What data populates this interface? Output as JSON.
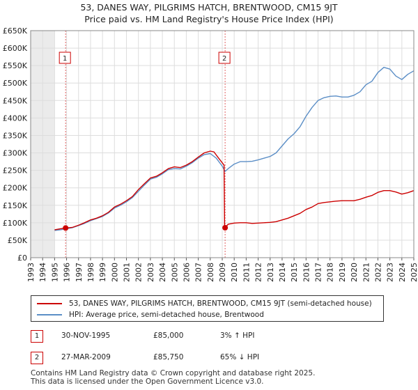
{
  "chart_data": {
    "type": "line",
    "title": "53, DANES WAY, PILGRIMS HATCH, BRENTWOOD, CM15 9JT",
    "subtitle": "Price paid vs. HM Land Registry's House Price Index (HPI)",
    "xlim": [
      1993,
      2025
    ],
    "ylim": [
      0,
      650000
    ],
    "x_ticks": [
      "1993",
      "1994",
      "1995",
      "1996",
      "1997",
      "1998",
      "1999",
      "2000",
      "2001",
      "2002",
      "2003",
      "2004",
      "2005",
      "2006",
      "2007",
      "2008",
      "2009",
      "2010",
      "2011",
      "2012",
      "2013",
      "2014",
      "2015",
      "2016",
      "2017",
      "2018",
      "2019",
      "2020",
      "2021",
      "2022",
      "2023",
      "2024",
      "2025"
    ],
    "y_ticks": [
      {
        "value": 0,
        "label": "£0"
      },
      {
        "value": 50000,
        "label": "£50K"
      },
      {
        "value": 100000,
        "label": "£100K"
      },
      {
        "value": 150000,
        "label": "£150K"
      },
      {
        "value": 200000,
        "label": "£200K"
      },
      {
        "value": 250000,
        "label": "£250K"
      },
      {
        "value": 300000,
        "label": "£300K"
      },
      {
        "value": 350000,
        "label": "£350K"
      },
      {
        "value": 400000,
        "label": "£400K"
      },
      {
        "value": 450000,
        "label": "£450K"
      },
      {
        "value": 500000,
        "label": "£500K"
      },
      {
        "value": 550000,
        "label": "£550K"
      },
      {
        "value": 600000,
        "label": "£600K"
      },
      {
        "value": 650000,
        "label": "£650K"
      }
    ],
    "data_start": 1995,
    "series": [
      {
        "name": "53, DANES WAY, PILGRIMS HATCH, BRENTWOOD, CM15 9JT (semi-detached house)",
        "color": "#cc0000",
        "points": [
          [
            1995.0,
            80000
          ],
          [
            1995.5,
            83000
          ],
          [
            1995.92,
            85000
          ],
          [
            1996.5,
            87000
          ],
          [
            1997,
            93000
          ],
          [
            1997.5,
            100000
          ],
          [
            1998,
            108000
          ],
          [
            1998.5,
            113000
          ],
          [
            1999,
            120000
          ],
          [
            1999.5,
            130000
          ],
          [
            2000,
            145000
          ],
          [
            2000.5,
            153000
          ],
          [
            2001,
            163000
          ],
          [
            2001.5,
            175000
          ],
          [
            2002,
            195000
          ],
          [
            2002.5,
            212000
          ],
          [
            2003,
            228000
          ],
          [
            2003.5,
            233000
          ],
          [
            2004,
            243000
          ],
          [
            2004.5,
            255000
          ],
          [
            2005,
            260000
          ],
          [
            2005.5,
            258000
          ],
          [
            2006,
            265000
          ],
          [
            2006.5,
            275000
          ],
          [
            2007,
            288000
          ],
          [
            2007.5,
            300000
          ],
          [
            2008,
            305000
          ],
          [
            2008.3,
            303000
          ],
          [
            2008.7,
            285000
          ],
          [
            2009.15,
            265000
          ],
          [
            2009.2,
            88000
          ],
          [
            2009.24,
            85750
          ],
          [
            2009.5,
            96000
          ],
          [
            2010,
            99000
          ],
          [
            2010.5,
            100000
          ],
          [
            2011,
            100000
          ],
          [
            2011.5,
            98000
          ],
          [
            2012,
            99000
          ],
          [
            2012.5,
            100000
          ],
          [
            2013,
            101000
          ],
          [
            2013.5,
            103000
          ],
          [
            2014,
            108000
          ],
          [
            2014.5,
            113000
          ],
          [
            2015,
            120000
          ],
          [
            2015.5,
            127000
          ],
          [
            2016,
            138000
          ],
          [
            2016.5,
            145000
          ],
          [
            2017,
            155000
          ],
          [
            2017.5,
            158000
          ],
          [
            2018,
            160000
          ],
          [
            2018.5,
            162000
          ],
          [
            2019,
            163000
          ],
          [
            2019.5,
            163000
          ],
          [
            2020,
            163000
          ],
          [
            2020.5,
            167000
          ],
          [
            2021,
            173000
          ],
          [
            2021.5,
            178000
          ],
          [
            2022,
            187000
          ],
          [
            2022.5,
            192000
          ],
          [
            2023,
            192000
          ],
          [
            2023.5,
            188000
          ],
          [
            2024,
            182000
          ],
          [
            2024.5,
            186000
          ],
          [
            2025,
            192000
          ]
        ]
      },
      {
        "name": "HPI: Average price, semi-detached house, Brentwood",
        "color": "#5b8ec6",
        "points": [
          [
            1995.0,
            78000
          ],
          [
            1995.5,
            80000
          ],
          [
            1995.92,
            82500
          ],
          [
            1996.5,
            86000
          ],
          [
            1997,
            92000
          ],
          [
            1997.5,
            98000
          ],
          [
            1998,
            106000
          ],
          [
            1998.5,
            112000
          ],
          [
            1999,
            118000
          ],
          [
            1999.5,
            128000
          ],
          [
            2000,
            142000
          ],
          [
            2000.5,
            150000
          ],
          [
            2001,
            160000
          ],
          [
            2001.5,
            172000
          ],
          [
            2002,
            190000
          ],
          [
            2002.5,
            208000
          ],
          [
            2003,
            225000
          ],
          [
            2003.5,
            230000
          ],
          [
            2004,
            240000
          ],
          [
            2004.5,
            252000
          ],
          [
            2005,
            255000
          ],
          [
            2005.5,
            254000
          ],
          [
            2006,
            262000
          ],
          [
            2006.5,
            272000
          ],
          [
            2007,
            285000
          ],
          [
            2007.5,
            295000
          ],
          [
            2008,
            298000
          ],
          [
            2008.5,
            285000
          ],
          [
            2009,
            262000
          ],
          [
            2009.24,
            247000
          ],
          [
            2009.5,
            255000
          ],
          [
            2010,
            268000
          ],
          [
            2010.5,
            275000
          ],
          [
            2011,
            275000
          ],
          [
            2011.5,
            276000
          ],
          [
            2012,
            280000
          ],
          [
            2012.5,
            285000
          ],
          [
            2013,
            290000
          ],
          [
            2013.5,
            300000
          ],
          [
            2014,
            320000
          ],
          [
            2014.5,
            340000
          ],
          [
            2015,
            355000
          ],
          [
            2015.5,
            375000
          ],
          [
            2016,
            405000
          ],
          [
            2016.5,
            430000
          ],
          [
            2017,
            450000
          ],
          [
            2017.5,
            458000
          ],
          [
            2018,
            462000
          ],
          [
            2018.5,
            463000
          ],
          [
            2019,
            460000
          ],
          [
            2019.5,
            460000
          ],
          [
            2020,
            465000
          ],
          [
            2020.5,
            475000
          ],
          [
            2021,
            495000
          ],
          [
            2021.5,
            505000
          ],
          [
            2022,
            530000
          ],
          [
            2022.5,
            545000
          ],
          [
            2023,
            540000
          ],
          [
            2023.5,
            520000
          ],
          [
            2024,
            510000
          ],
          [
            2024.5,
            525000
          ],
          [
            2025,
            535000
          ]
        ]
      }
    ],
    "sales": [
      {
        "label": "1",
        "x": 1995.92,
        "value": 85000
      },
      {
        "label": "2",
        "x": 2009.24,
        "value": 85750
      }
    ]
  },
  "legend": {
    "property_label": "53, DANES WAY, PILGRIMS HATCH, BRENTWOOD, CM15 9JT (semi-detached house)",
    "hpi_label": "HPI: Average price, semi-detached house, Brentwood",
    "property_color": "#cc0000",
    "hpi_color": "#5b8ec6"
  },
  "sales_table": [
    {
      "num": "1",
      "date": "30-NOV-1995",
      "price": "£85,000",
      "hpi": "3% ↑ HPI"
    },
    {
      "num": "2",
      "date": "27-MAR-2009",
      "price": "£85,750",
      "hpi": "65% ↓ HPI"
    }
  ],
  "footer": {
    "line1": "Contains HM Land Registry data © Crown copyright and database right 2025.",
    "line2": "This data is licensed under the Open Government Licence v3.0."
  }
}
